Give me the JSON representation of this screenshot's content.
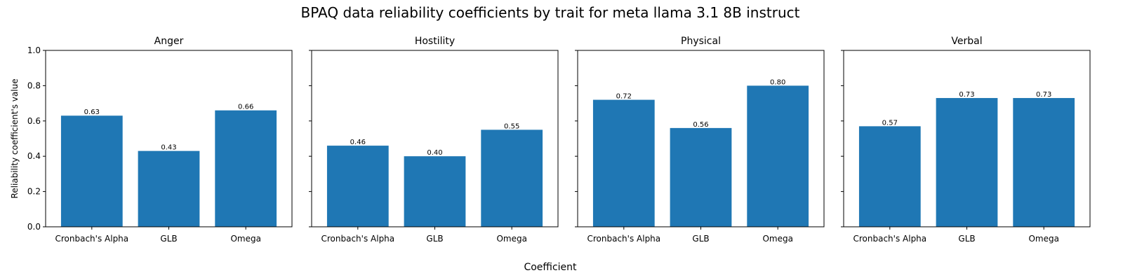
{
  "figure": {
    "title": "BPAQ data reliability coefficients by trait for meta llama 3.1 8B instruct",
    "xlabel": "Coefficient",
    "ylabel": "Reliability coefficient's value"
  },
  "colors": {
    "bar": "#1f77b4",
    "axis": "#000000",
    "background": "#ffffff"
  },
  "chart_data": [
    {
      "type": "bar",
      "title": "Anger",
      "categories": [
        "Cronbach's Alpha",
        "GLB",
        "Omega"
      ],
      "values": [
        0.63,
        0.43,
        0.66
      ],
      "labels": [
        "0.63",
        "0.43",
        "0.66"
      ],
      "ylim": [
        0,
        1.0
      ],
      "yticks": [
        "0.0",
        "0.2",
        "0.4",
        "0.6",
        "0.8",
        "1.0"
      ],
      "show_ytick_labels": true,
      "grid": false
    },
    {
      "type": "bar",
      "title": "Hostility",
      "categories": [
        "Cronbach's Alpha",
        "GLB",
        "Omega"
      ],
      "values": [
        0.46,
        0.4,
        0.55
      ],
      "labels": [
        "0.46",
        "0.40",
        "0.55"
      ],
      "ylim": [
        0,
        1.0
      ],
      "yticks": [
        "0.0",
        "0.2",
        "0.4",
        "0.6",
        "0.8",
        "1.0"
      ],
      "show_ytick_labels": false,
      "grid": false
    },
    {
      "type": "bar",
      "title": "Physical",
      "categories": [
        "Cronbach's Alpha",
        "GLB",
        "Omega"
      ],
      "values": [
        0.72,
        0.56,
        0.8
      ],
      "labels": [
        "0.72",
        "0.56",
        "0.80"
      ],
      "ylim": [
        0,
        1.0
      ],
      "yticks": [
        "0.0",
        "0.2",
        "0.4",
        "0.6",
        "0.8",
        "1.0"
      ],
      "show_ytick_labels": false,
      "grid": false
    },
    {
      "type": "bar",
      "title": "Verbal",
      "categories": [
        "Cronbach's Alpha",
        "GLB",
        "Omega"
      ],
      "values": [
        0.57,
        0.73,
        0.73
      ],
      "labels": [
        "0.57",
        "0.73",
        "0.73"
      ],
      "ylim": [
        0,
        1.0
      ],
      "yticks": [
        "0.0",
        "0.2",
        "0.4",
        "0.6",
        "0.8",
        "1.0"
      ],
      "show_ytick_labels": false,
      "grid": false
    }
  ]
}
